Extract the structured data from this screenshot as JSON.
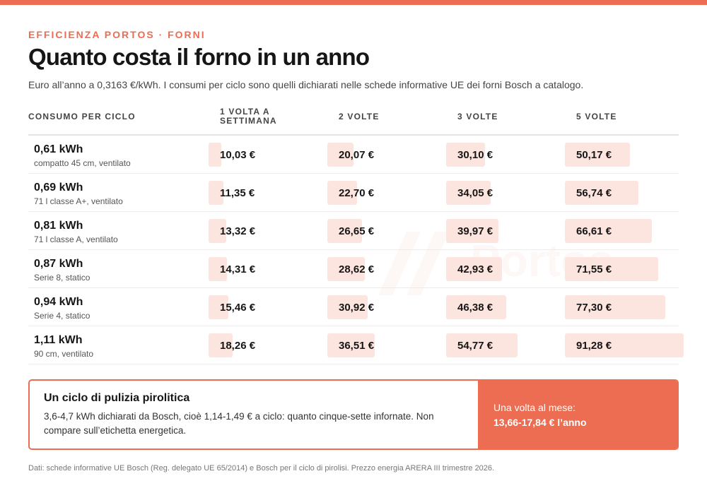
{
  "kicker": "EFFICIENZA PORTOS · FORNI",
  "title": "Quanto costa il forno in un anno",
  "subtitle": "Euro all’anno a 0,3163 €/kWh. I consumi per ciclo sono quelli dichiarati nelle schede informative UE dei forni Bosch a catalogo.",
  "watermark": "Portos",
  "colors": {
    "accent": "#ec6d52",
    "bar": "#fde5df"
  },
  "chart_data": {
    "type": "table",
    "columns": [
      "CONSUMO PER CICLO",
      "1 VOLTA A SETTIMANA",
      "2 VOLTE",
      "3 VOLTE",
      "5 VOLTE"
    ],
    "value_unit": "€",
    "bar_max": 91.28,
    "rows": [
      {
        "kwh": "0,61 kWh",
        "desc": "compatto 45 cm, ventilato",
        "values": [
          10.03,
          20.07,
          30.1,
          50.17
        ],
        "labels": [
          "10,03 €",
          "20,07 €",
          "30,10 €",
          "50,17 €"
        ]
      },
      {
        "kwh": "0,69 kWh",
        "desc": "71 l classe A+, ventilato",
        "values": [
          11.35,
          22.7,
          34.05,
          56.74
        ],
        "labels": [
          "11,35 €",
          "22,70 €",
          "34,05 €",
          "56,74 €"
        ]
      },
      {
        "kwh": "0,81 kWh",
        "desc": "71 l classe A, ventilato",
        "values": [
          13.32,
          26.65,
          39.97,
          66.61
        ],
        "labels": [
          "13,32 €",
          "26,65 €",
          "39,97 €",
          "66,61 €"
        ]
      },
      {
        "kwh": "0,87 kWh",
        "desc": "Serie 8, statico",
        "values": [
          14.31,
          28.62,
          42.93,
          71.55
        ],
        "labels": [
          "14,31 €",
          "28,62 €",
          "42,93 €",
          "71,55 €"
        ]
      },
      {
        "kwh": "0,94 kWh",
        "desc": "Serie 4, statico",
        "values": [
          15.46,
          30.92,
          46.38,
          77.3
        ],
        "labels": [
          "15,46 €",
          "30,92 €",
          "46,38 €",
          "77,30 €"
        ]
      },
      {
        "kwh": "1,11 kWh",
        "desc": "90 cm, ventilato",
        "values": [
          18.26,
          36.51,
          54.77,
          91.28
        ],
        "labels": [
          "18,26 €",
          "36,51 €",
          "54,77 €",
          "91,28 €"
        ]
      }
    ]
  },
  "callout": {
    "title": "Un ciclo di pulizia pirolitica",
    "text": "3,6-4,7 kWh dichiarati da Bosch, cioè 1,14-1,49 € a ciclo: quanto cinque-sette infornate. Non compare sull’etichetta energetica.",
    "side_line1": "Una volta al mese:",
    "side_line2": "13,66-17,84 € l’anno"
  },
  "footnote": "Dati: schede informative UE Bosch (Reg. delegato UE 65/2014) e Bosch per il ciclo di pirolisi. Prezzo energia ARERA III trimestre 2026."
}
